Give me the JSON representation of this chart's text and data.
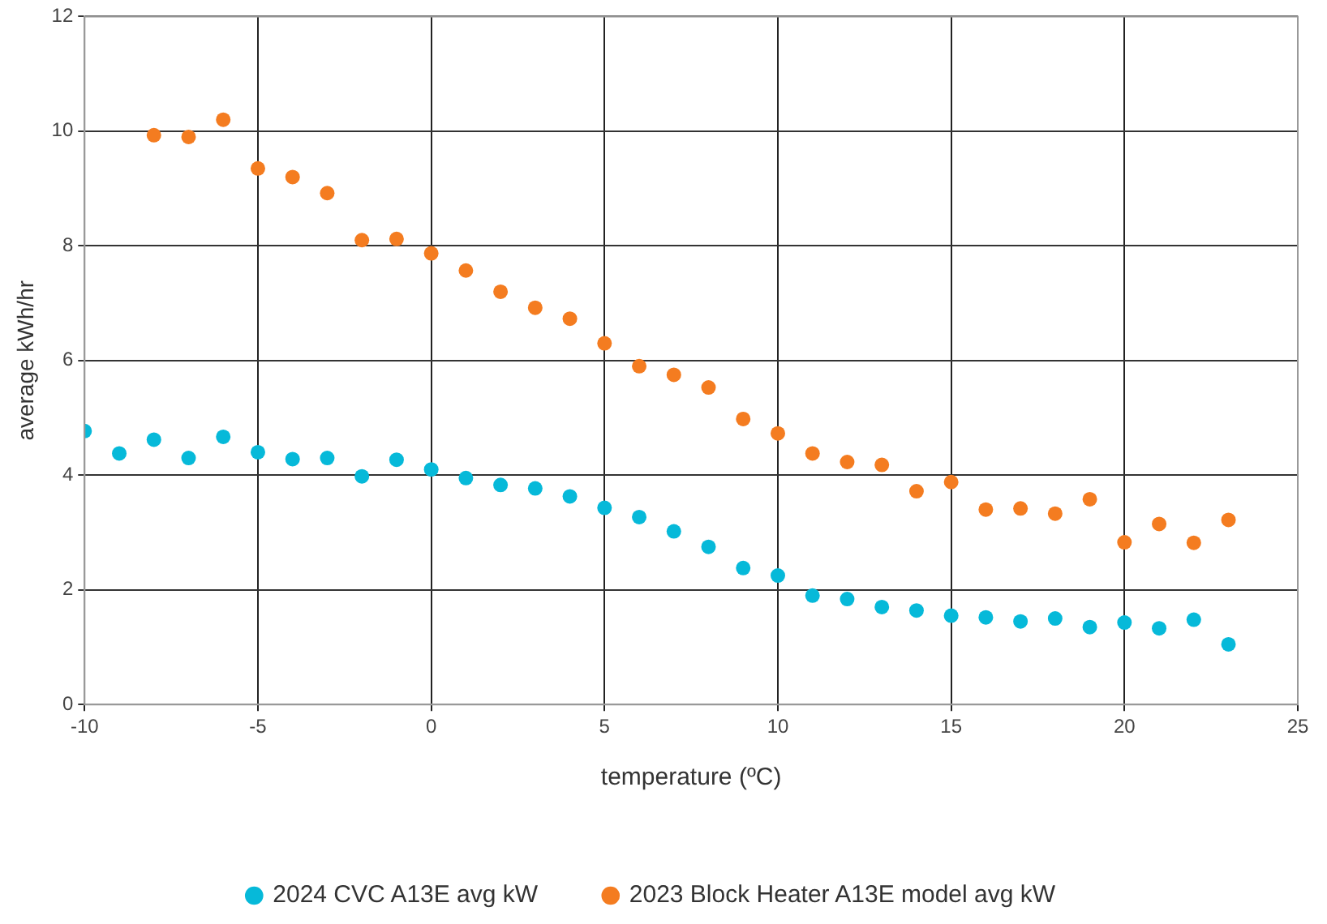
{
  "chart_data": {
    "type": "scatter",
    "xlabel": "temperature (ºC)",
    "ylabel": "average kWh/hr",
    "xlim": [
      -10,
      25
    ],
    "xticks": [
      -10,
      -5,
      0,
      5,
      10,
      15,
      20,
      25
    ],
    "ylim": [
      0,
      12
    ],
    "yticks": [
      0,
      2,
      4,
      6,
      8,
      10,
      12
    ],
    "grid": true,
    "legend": "bottom",
    "marker": "circle",
    "series": [
      {
        "name": "2024 CVC A13E avg kW",
        "color": "#06b9d9",
        "x": [
          -10,
          -9,
          -8,
          -7,
          -6,
          -5,
          -4,
          -3,
          -2,
          -1,
          0,
          1,
          2,
          3,
          4,
          5,
          6,
          7,
          8,
          9,
          10,
          11,
          12,
          13,
          14,
          15,
          16,
          17,
          18,
          19,
          20,
          21,
          22,
          23
        ],
        "values": [
          4.77,
          4.38,
          4.62,
          4.3,
          4.67,
          4.4,
          4.28,
          4.3,
          3.98,
          4.27,
          4.1,
          3.95,
          3.83,
          3.77,
          3.63,
          3.43,
          3.27,
          3.02,
          2.75,
          2.38,
          2.25,
          1.9,
          1.84,
          1.7,
          1.64,
          1.55,
          1.52,
          1.45,
          1.5,
          1.35,
          1.43,
          1.33,
          1.48,
          1.05
        ]
      },
      {
        "name": "2023 Block Heater A13E model avg kW",
        "color": "#f47c20",
        "x": [
          -8,
          -7,
          -6,
          -5,
          -4,
          -3,
          -2,
          -1,
          0,
          1,
          2,
          3,
          4,
          5,
          6,
          7,
          8,
          9,
          10,
          11,
          12,
          13,
          14,
          15,
          16,
          17,
          18,
          19,
          20,
          21,
          22,
          23
        ],
        "values": [
          9.93,
          9.9,
          10.2,
          9.35,
          9.2,
          8.92,
          8.1,
          8.12,
          7.87,
          7.57,
          7.2,
          6.92,
          6.73,
          6.3,
          5.9,
          5.75,
          5.53,
          4.98,
          4.73,
          4.38,
          4.23,
          4.18,
          3.72,
          3.88,
          3.4,
          3.42,
          3.33,
          3.58,
          2.83,
          3.15,
          2.82,
          3.22
        ]
      }
    ]
  }
}
